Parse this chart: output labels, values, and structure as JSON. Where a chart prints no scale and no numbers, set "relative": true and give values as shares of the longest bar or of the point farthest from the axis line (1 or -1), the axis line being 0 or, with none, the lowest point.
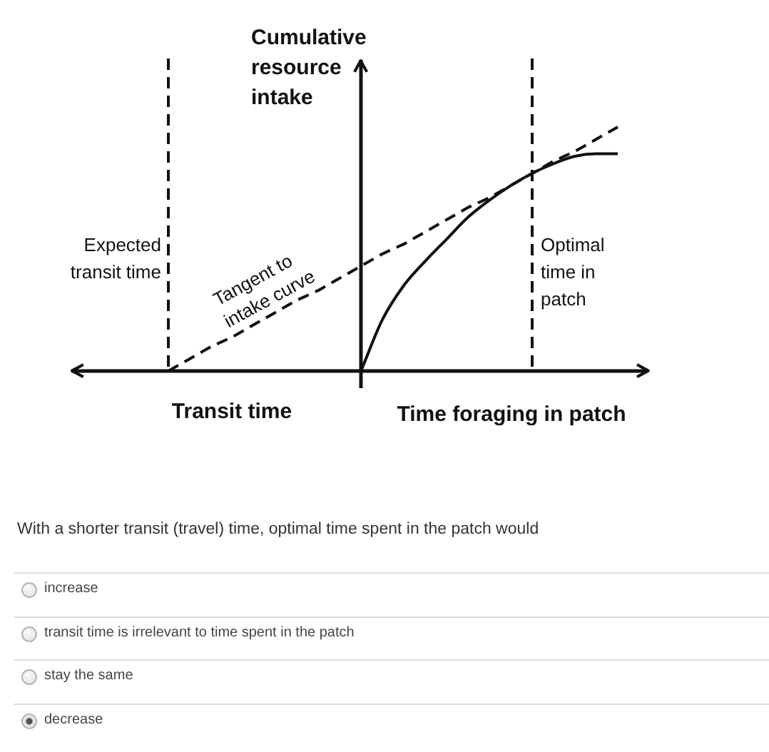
{
  "chart_data": {
    "type": "line",
    "relative": true,
    "ylabel": "Cumulative resource intake",
    "xlabel": "Time foraging in patch",
    "categories": [
      null,
      null,
      null,
      null,
      null,
      null,
      null,
      null,
      null,
      null,
      null,
      null,
      null,
      null,
      null,
      null,
      null,
      null,
      null,
      null,
      null,
      null
    ],
    "series": [
      {
        "color": "#111111",
        "values": [
          null,
          null,
          null,
          null,
          null,
          null,
          null,
          null,
          null,
          0,
          0.21,
          0.35,
          0.45,
          0.54,
          0.63,
          0.7,
          0.76,
          0.81,
          0.85,
          0.88,
          0.89,
          0.89
        ]
      },
      {
        "name": "Tangent to intake curve",
        "color": "#111111",
        "line_style": "dashed",
        "values": [
          0,
          0.05,
          0.1,
          0.14,
          0.19,
          0.24,
          0.29,
          0.33,
          0.38,
          0.43,
          0.48,
          0.52,
          0.57,
          0.62,
          0.67,
          0.71,
          0.76,
          0.81,
          0.86,
          0.9,
          0.95,
          1
        ]
      }
    ],
    "annotations": [
      "Expected transit time",
      "Optimal time in patch",
      "Transit time",
      "With a shorter transit (travel) time, optimal time spent in the patch would",
      "increase",
      "transit time is irrelevant to time spent in the patch",
      "stay the same",
      "decrease"
    ]
  }
}
